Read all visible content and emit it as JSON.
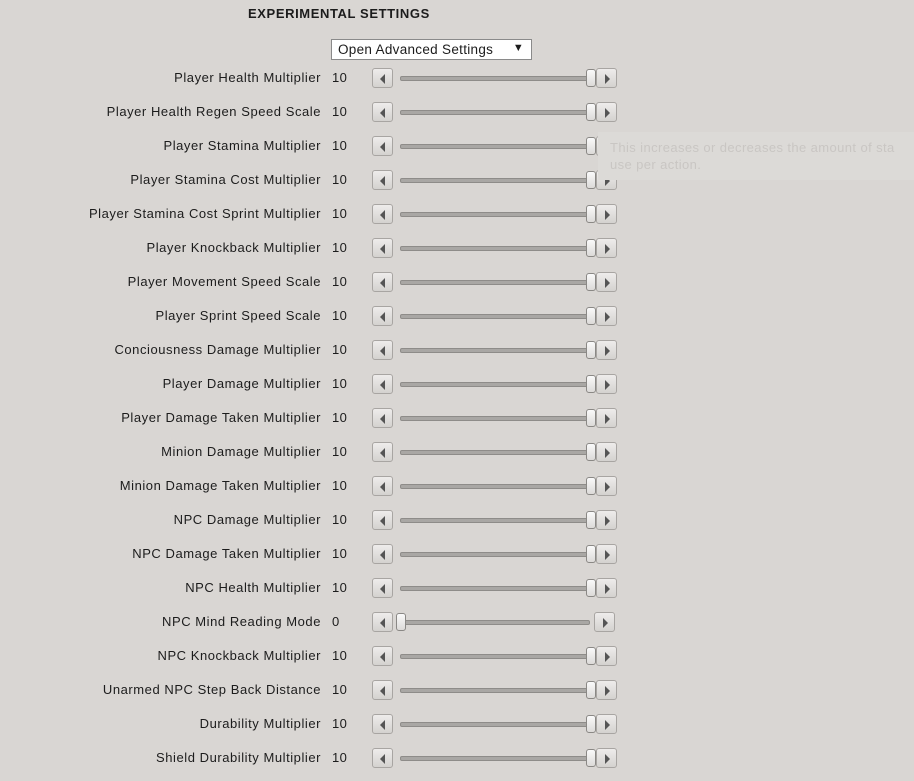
{
  "header": {
    "title": "EXPERIMENTAL SETTINGS"
  },
  "dropdown": {
    "label": "Open Advanced Settings",
    "arrow": "▼"
  },
  "tooltip": {
    "lines": [
      "This increases or decreases the amount of sta",
      "use per action."
    ]
  },
  "settings": [
    {
      "label": "Player Health Multiplier",
      "value": 10
    },
    {
      "label": "Player Health Regen Speed Scale",
      "value": 10
    },
    {
      "label": "Player Stamina Multiplier",
      "value": 10
    },
    {
      "label": "Player Stamina Cost Multiplier",
      "value": 10
    },
    {
      "label": "Player Stamina Cost Sprint Multiplier",
      "value": 10
    },
    {
      "label": "Player Knockback Multiplier",
      "value": 10
    },
    {
      "label": "Player Movement Speed Scale",
      "value": 10
    },
    {
      "label": "Player Sprint Speed Scale",
      "value": 10
    },
    {
      "label": "Conciousness Damage Multiplier",
      "value": 10
    },
    {
      "label": "Player Damage Multiplier",
      "value": 10
    },
    {
      "label": "Player Damage Taken Multiplier",
      "value": 10
    },
    {
      "label": "Minion Damage Multiplier",
      "value": 10
    },
    {
      "label": "Minion Damage Taken Multiplier",
      "value": 10
    },
    {
      "label": "NPC Damage Multiplier",
      "value": 10
    },
    {
      "label": "NPC Damage Taken Multiplier",
      "value": 10
    },
    {
      "label": "NPC Health Multiplier",
      "value": 10
    },
    {
      "label": "NPC Mind Reading Mode",
      "value": 0
    },
    {
      "label": "NPC Knockback Multiplier",
      "value": 10
    },
    {
      "label": "Unarmed NPC Step Back Distance",
      "value": 10
    },
    {
      "label": "Durability Multiplier",
      "value": 10
    },
    {
      "label": "Shield Durability Multiplier",
      "value": 10
    }
  ]
}
